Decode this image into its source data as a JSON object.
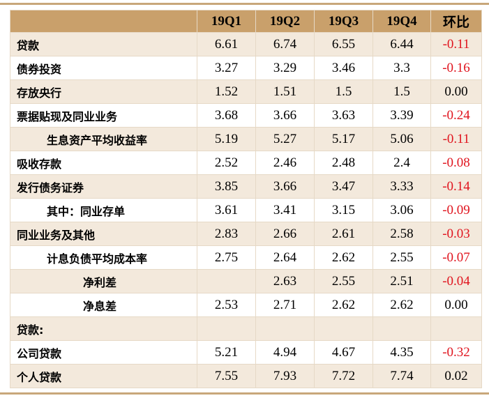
{
  "header": [
    "",
    "19Q1",
    "19Q2",
    "19Q3",
    "19Q4",
    "环比"
  ],
  "rows": [
    {
      "label": "贷款",
      "indent": 0,
      "values": [
        "6.61",
        "6.74",
        "6.55",
        "6.44",
        "-0.11"
      ]
    },
    {
      "label": "债券投资",
      "indent": 0,
      "values": [
        "3.27",
        "3.29",
        "3.46",
        "3.3",
        "-0.16"
      ]
    },
    {
      "label": "存放央行",
      "indent": 0,
      "values": [
        "1.52",
        "1.51",
        "1.5",
        "1.5",
        "0.00"
      ]
    },
    {
      "label": "票据贴现及同业业务",
      "indent": 0,
      "values": [
        "3.68",
        "3.66",
        "3.63",
        "3.39",
        "-0.24"
      ]
    },
    {
      "label": "生息资产平均收益率",
      "indent": 1,
      "values": [
        "5.19",
        "5.27",
        "5.17",
        "5.06",
        "-0.11"
      ]
    },
    {
      "label": "吸收存款",
      "indent": 0,
      "values": [
        "2.52",
        "2.46",
        "2.48",
        "2.4",
        "-0.08"
      ]
    },
    {
      "label": "发行债务证券",
      "indent": 0,
      "values": [
        "3.85",
        "3.66",
        "3.47",
        "3.33",
        "-0.14"
      ]
    },
    {
      "label": "其中：同业存单",
      "indent": 1,
      "values": [
        "3.61",
        "3.41",
        "3.15",
        "3.06",
        "-0.09"
      ]
    },
    {
      "label": "同业业务及其他",
      "indent": 0,
      "values": [
        "2.83",
        "2.66",
        "2.61",
        "2.58",
        "-0.03"
      ]
    },
    {
      "label": "计息负债平均成本率",
      "indent": 1,
      "values": [
        "2.75",
        "2.64",
        "2.62",
        "2.55",
        "-0.07"
      ]
    },
    {
      "label": "净利差",
      "indent": 2,
      "values": [
        "",
        "2.63",
        "2.55",
        "2.51",
        "-0.04"
      ]
    },
    {
      "label": "净息差",
      "indent": 2,
      "values": [
        "2.53",
        "2.71",
        "2.62",
        "2.62",
        "0.00"
      ]
    },
    {
      "label": "贷款:",
      "indent": 0,
      "values": [
        "",
        "",
        "",
        "",
        ""
      ]
    },
    {
      "label": "公司贷款",
      "indent": 0,
      "values": [
        "5.21",
        "4.94",
        "4.67",
        "4.35",
        "-0.32"
      ]
    },
    {
      "label": "个人贷款",
      "indent": 0,
      "values": [
        "7.55",
        "7.93",
        "7.72",
        "7.74",
        "0.02"
      ]
    }
  ],
  "colors": {
    "header": "#c9a06b",
    "stripe": "#f3e9dc",
    "negative": "#e0141e"
  }
}
